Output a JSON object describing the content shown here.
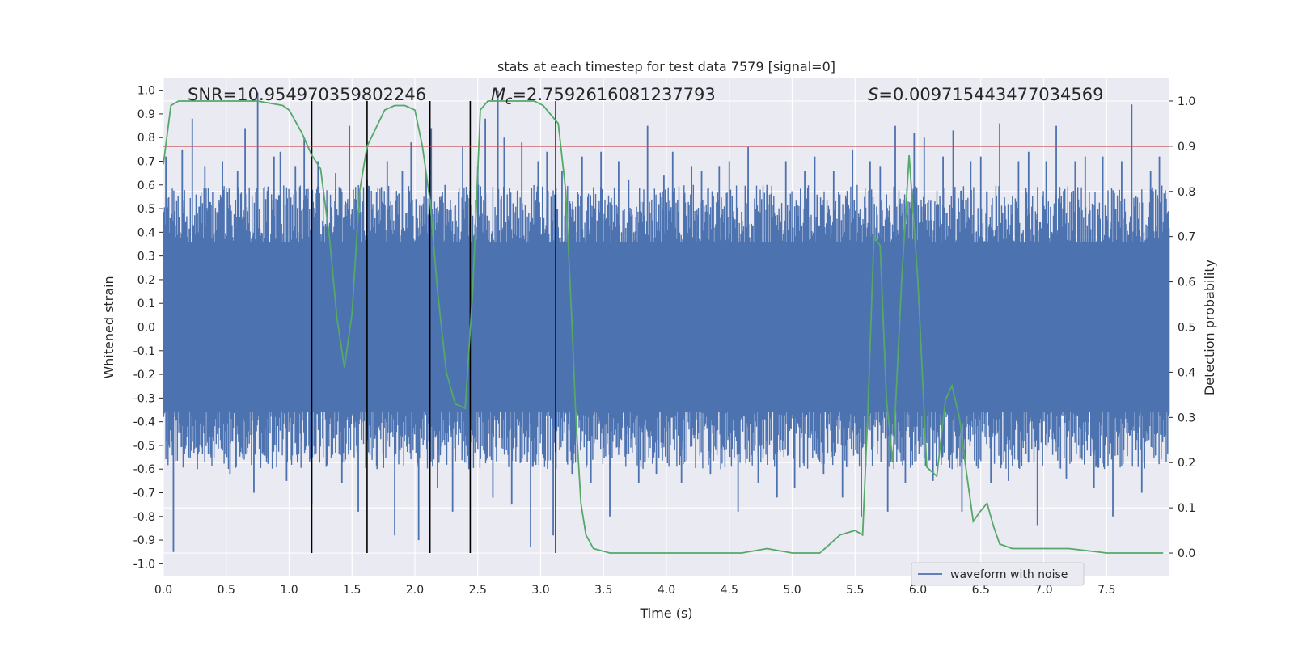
{
  "chart_data": {
    "type": "line",
    "title": "stats at each timestep for test data 7579 [signal=0]",
    "xlabel": "Time (s)",
    "ylabel_left": "Whitened strain",
    "ylabel_right": "Detection probability",
    "xlim": [
      0.0,
      8.0
    ],
    "ylim_left": [
      -1.05,
      1.05
    ],
    "ylim_right": [
      -0.05,
      1.05
    ],
    "x_ticks": [
      "0.0",
      "0.5",
      "1.0",
      "1.5",
      "2.0",
      "2.5",
      "3.0",
      "3.5",
      "4.0",
      "4.5",
      "5.0",
      "5.5",
      "6.0",
      "6.5",
      "7.0",
      "7.5"
    ],
    "y_left_ticks": [
      "-1.0",
      "-0.9",
      "-0.8",
      "-0.7",
      "-0.6",
      "-0.5",
      "-0.4",
      "-0.3",
      "-0.2",
      "-0.1",
      "0.0",
      "0.1",
      "0.2",
      "0.3",
      "0.4",
      "0.5",
      "0.6",
      "0.7",
      "0.8",
      "0.9",
      "1.0"
    ],
    "y_right_ticks": [
      "0.0",
      "0.1",
      "0.2",
      "0.3",
      "0.4",
      "0.5",
      "0.6",
      "0.7",
      "0.8",
      "0.9",
      "1.0"
    ],
    "grid": true,
    "legend_placement": "lower-right",
    "annotations": {
      "snr": "SNR=10.954970359802246",
      "mc_symbol": "M",
      "mc_sub": "c",
      "mc_value": "=2.7592616081237793",
      "s_symbol": "S",
      "s_value": "=0.009715443477034569"
    },
    "threshold": {
      "axis": "right",
      "value": 0.9,
      "color": "#c44e52"
    },
    "vlines": [
      1.18,
      1.62,
      2.12,
      2.44,
      3.12
    ],
    "series": [
      {
        "name": "waveform with noise",
        "axis": "left",
        "kind": "dense noise (band approx. ±0.4, peaks to ±1.0)",
        "color": "#4c72b0",
        "peaks_x": [
          0.02,
          0.08,
          0.15,
          0.23,
          0.27,
          0.33,
          0.38,
          0.47,
          0.53,
          0.59,
          0.65,
          0.72,
          0.75,
          0.82,
          0.88,
          0.93,
          0.98,
          1.05,
          1.12,
          1.18,
          1.23,
          1.3,
          1.37,
          1.42,
          1.48,
          1.55,
          1.62,
          1.7,
          1.78,
          1.84,
          1.9,
          1.97,
          2.03,
          2.09,
          2.13,
          2.18,
          2.24,
          2.3,
          2.38,
          2.43,
          2.5,
          2.56,
          2.62,
          2.66,
          2.71,
          2.77,
          2.85,
          2.92,
          2.98,
          3.05,
          3.1,
          3.17,
          3.25,
          3.33,
          3.4,
          3.48,
          3.55,
          3.62,
          3.7,
          3.78,
          3.85,
          3.92,
          3.98,
          4.05,
          4.12,
          4.2,
          4.28,
          4.35,
          4.42,
          4.5,
          4.57,
          4.65,
          4.73,
          4.8,
          4.88,
          4.95,
          5.02,
          5.1,
          5.18,
          5.25,
          5.33,
          5.4,
          5.48,
          5.55,
          5.62,
          5.7,
          5.76,
          5.82,
          5.9,
          5.97,
          6.05,
          6.12,
          6.2,
          6.28,
          6.35,
          6.42,
          6.5,
          6.58,
          6.65,
          6.72,
          6.8,
          6.88,
          6.95,
          7.02,
          7.1,
          7.18,
          7.25,
          7.33,
          7.4,
          7.47,
          7.55,
          7.62,
          7.7,
          7.78,
          7.85,
          7.92
        ],
        "peaks_y": [
          0.72,
          -0.95,
          0.75,
          0.88,
          -0.6,
          0.68,
          -0.55,
          0.7,
          -0.62,
          0.66,
          0.84,
          -0.7,
          0.99,
          -0.55,
          0.72,
          0.74,
          -0.65,
          0.68,
          0.8,
          -0.75,
          0.7,
          -0.58,
          0.65,
          -0.66,
          0.85,
          -0.78,
          0.62,
          -0.6,
          0.7,
          -0.88,
          0.66,
          0.78,
          -0.9,
          0.65,
          0.84,
          -0.68,
          0.6,
          -0.78,
          0.76,
          -0.6,
          0.68,
          0.88,
          -0.72,
          1.0,
          0.8,
          -0.75,
          0.78,
          -0.93,
          0.7,
          0.74,
          -0.88,
          0.66,
          -0.62,
          0.72,
          -0.66,
          0.74,
          -0.8,
          0.7,
          0.62,
          -0.66,
          0.85,
          -0.62,
          0.64,
          0.74,
          -0.66,
          0.68,
          0.66,
          -0.62,
          0.68,
          0.7,
          -0.78,
          0.76,
          -0.66,
          0.6,
          -0.72,
          0.7,
          -0.68,
          0.66,
          0.72,
          -0.62,
          0.66,
          -0.72,
          0.75,
          -0.8,
          0.7,
          0.68,
          -0.78,
          0.85,
          -0.66,
          0.82,
          0.8,
          -0.65,
          0.72,
          0.83,
          -0.78,
          0.7,
          0.72,
          -0.66,
          0.86,
          -0.65,
          0.7,
          0.74,
          -0.84,
          0.7,
          0.85,
          -0.64,
          0.7,
          0.72,
          -0.68,
          0.72,
          -0.8,
          0.7,
          0.94,
          -0.7,
          0.66,
          0.72
        ]
      },
      {
        "name": "",
        "axis": "right",
        "color": "#55a868",
        "x": [
          0.0,
          0.06,
          0.12,
          0.25,
          0.5,
          0.75,
          0.95,
          1.0,
          1.1,
          1.18,
          1.25,
          1.32,
          1.38,
          1.44,
          1.5,
          1.56,
          1.62,
          1.69,
          1.76,
          1.84,
          1.92,
          2.0,
          2.06,
          2.12,
          2.18,
          2.25,
          2.32,
          2.4,
          2.46,
          2.52,
          2.58,
          2.66,
          2.8,
          2.95,
          3.02,
          3.08,
          3.14,
          3.2,
          3.25,
          3.28,
          3.32,
          3.36,
          3.42,
          3.55,
          3.8,
          4.0,
          4.2,
          4.45,
          4.6,
          4.8,
          5.0,
          5.15,
          5.22,
          5.3,
          5.38,
          5.5,
          5.56,
          5.6,
          5.65,
          5.7,
          5.75,
          5.8,
          5.87,
          5.93,
          6.0,
          6.07,
          6.15,
          6.22,
          6.27,
          6.33,
          6.38,
          6.44,
          6.49,
          6.55,
          6.6,
          6.65,
          6.75,
          6.95,
          7.2,
          7.5,
          7.95
        ],
        "y": [
          0.86,
          0.99,
          1.0,
          1.0,
          1.0,
          1.0,
          0.99,
          0.98,
          0.93,
          0.88,
          0.85,
          0.7,
          0.52,
          0.41,
          0.53,
          0.8,
          0.9,
          0.94,
          0.98,
          0.99,
          0.99,
          0.98,
          0.9,
          0.78,
          0.58,
          0.4,
          0.33,
          0.32,
          0.58,
          0.98,
          1.0,
          1.0,
          1.0,
          1.0,
          0.99,
          0.97,
          0.95,
          0.8,
          0.5,
          0.3,
          0.11,
          0.04,
          0.01,
          0.0,
          0.0,
          0.0,
          0.0,
          0.0,
          0.0,
          0.01,
          0.0,
          0.0,
          0.0,
          0.02,
          0.04,
          0.05,
          0.04,
          0.3,
          0.7,
          0.68,
          0.34,
          0.2,
          0.6,
          0.88,
          0.6,
          0.19,
          0.17,
          0.34,
          0.37,
          0.3,
          0.19,
          0.07,
          0.09,
          0.11,
          0.06,
          0.02,
          0.01,
          0.01,
          0.01,
          0.0,
          0.0
        ]
      }
    ]
  }
}
